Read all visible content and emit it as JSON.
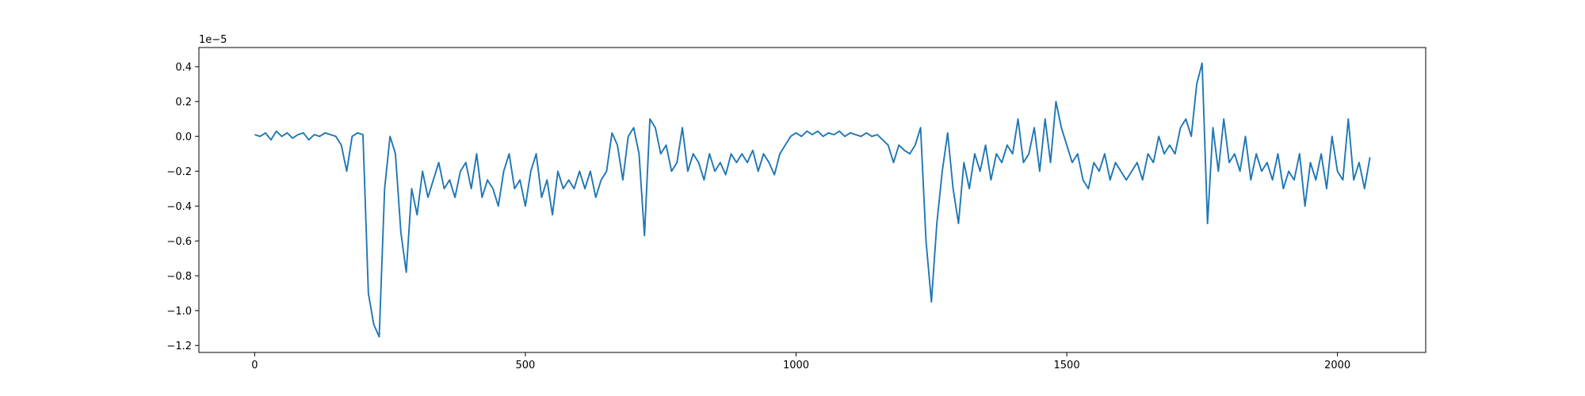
{
  "chart_data": {
    "type": "line",
    "y_offset_label": "1e−5",
    "x": [
      0,
      10,
      20,
      30,
      40,
      50,
      60,
      70,
      80,
      90,
      100,
      110,
      120,
      130,
      140,
      150,
      160,
      170,
      180,
      190,
      200,
      210,
      220,
      230,
      240,
      250,
      260,
      270,
      280,
      290,
      300,
      310,
      320,
      330,
      340,
      350,
      360,
      370,
      380,
      390,
      400,
      410,
      420,
      430,
      440,
      450,
      460,
      470,
      480,
      490,
      500,
      510,
      520,
      530,
      540,
      550,
      560,
      570,
      580,
      590,
      600,
      610,
      620,
      630,
      640,
      650,
      660,
      670,
      680,
      690,
      700,
      710,
      720,
      730,
      740,
      750,
      760,
      770,
      780,
      790,
      800,
      810,
      820,
      830,
      840,
      850,
      860,
      870,
      880,
      890,
      900,
      910,
      920,
      930,
      940,
      950,
      960,
      970,
      980,
      990,
      1000,
      1010,
      1020,
      1030,
      1040,
      1050,
      1060,
      1070,
      1080,
      1090,
      1100,
      1110,
      1120,
      1130,
      1140,
      1150,
      1160,
      1170,
      1180,
      1190,
      1200,
      1210,
      1220,
      1230,
      1240,
      1250,
      1260,
      1270,
      1280,
      1290,
      1300,
      1310,
      1320,
      1330,
      1340,
      1350,
      1360,
      1370,
      1380,
      1390,
      1400,
      1410,
      1420,
      1430,
      1440,
      1450,
      1460,
      1470,
      1480,
      1490,
      1500,
      1510,
      1520,
      1530,
      1540,
      1550,
      1560,
      1570,
      1580,
      1590,
      1600,
      1610,
      1620,
      1630,
      1640,
      1650,
      1660,
      1670,
      1680,
      1690,
      1700,
      1710,
      1720,
      1730,
      1740,
      1750,
      1760,
      1770,
      1780,
      1790,
      1800,
      1810,
      1820,
      1830,
      1840,
      1850,
      1860,
      1870,
      1880,
      1890,
      1900,
      1910,
      1920,
      1930,
      1940,
      1950,
      1960,
      1970,
      1980,
      1990,
      2000,
      2010,
      2020,
      2030,
      2040,
      2050,
      2060
    ],
    "series": [
      {
        "color": "#1f77b4",
        "values": [
          0.01,
          0.0,
          0.02,
          -0.02,
          0.03,
          0.0,
          0.02,
          -0.01,
          0.01,
          0.02,
          -0.02,
          0.01,
          0.0,
          0.02,
          0.01,
          0.0,
          -0.05,
          -0.2,
          0.0,
          0.02,
          0.01,
          -0.9,
          -1.08,
          -1.15,
          -0.3,
          0.0,
          -0.1,
          -0.55,
          -0.78,
          -0.3,
          -0.45,
          -0.2,
          -0.35,
          -0.25,
          -0.15,
          -0.3,
          -0.25,
          -0.35,
          -0.2,
          -0.15,
          -0.3,
          -0.1,
          -0.35,
          -0.25,
          -0.3,
          -0.4,
          -0.2,
          -0.1,
          -0.3,
          -0.25,
          -0.4,
          -0.2,
          -0.1,
          -0.35,
          -0.25,
          -0.45,
          -0.2,
          -0.3,
          -0.25,
          -0.3,
          -0.2,
          -0.3,
          -0.2,
          -0.35,
          -0.25,
          -0.2,
          0.02,
          -0.05,
          -0.25,
          0.0,
          0.05,
          -0.1,
          -0.57,
          0.1,
          0.05,
          -0.1,
          -0.05,
          -0.2,
          -0.15,
          0.05,
          -0.2,
          -0.1,
          -0.15,
          -0.25,
          -0.1,
          -0.2,
          -0.15,
          -0.22,
          -0.1,
          -0.15,
          -0.1,
          -0.15,
          -0.08,
          -0.2,
          -0.1,
          -0.15,
          -0.22,
          -0.1,
          -0.05,
          0.0,
          0.02,
          0.0,
          0.03,
          0.01,
          0.03,
          0.0,
          0.02,
          0.01,
          0.03,
          0.0,
          0.02,
          0.01,
          0.0,
          0.02,
          0.0,
          0.01,
          -0.02,
          -0.05,
          -0.15,
          -0.05,
          -0.08,
          -0.1,
          -0.05,
          0.05,
          -0.6,
          -0.95,
          -0.5,
          -0.2,
          0.02,
          -0.3,
          -0.5,
          -0.15,
          -0.3,
          -0.1,
          -0.2,
          -0.05,
          -0.25,
          -0.1,
          -0.15,
          -0.05,
          -0.1,
          0.1,
          -0.15,
          -0.1,
          0.05,
          -0.2,
          0.1,
          -0.15,
          0.2,
          0.05,
          -0.05,
          -0.15,
          -0.1,
          -0.25,
          -0.3,
          -0.15,
          -0.2,
          -0.1,
          -0.25,
          -0.15,
          -0.2,
          -0.25,
          -0.2,
          -0.15,
          -0.25,
          -0.1,
          -0.15,
          0.0,
          -0.1,
          -0.05,
          -0.1,
          0.05,
          0.1,
          0.0,
          0.3,
          0.42,
          -0.5,
          0.05,
          -0.2,
          0.1,
          -0.15,
          -0.1,
          -0.2,
          0.0,
          -0.25,
          -0.1,
          -0.2,
          -0.15,
          -0.25,
          -0.1,
          -0.3,
          -0.2,
          -0.25,
          -0.1,
          -0.4,
          -0.15,
          -0.25,
          -0.1,
          -0.3,
          0.0,
          -0.2,
          -0.25,
          0.1,
          -0.25,
          -0.15,
          -0.3,
          -0.12
        ]
      }
    ],
    "xlim": [
      -103,
      2163
    ],
    "ylim": [
      -1.24,
      0.51
    ],
    "xticks": [
      0,
      500,
      1000,
      1500,
      2000
    ],
    "yticks": [
      {
        "value": -1.2,
        "label": "−1.2"
      },
      {
        "value": -1.0,
        "label": "−1.0"
      },
      {
        "value": -0.8,
        "label": "−0.8"
      },
      {
        "value": -0.6,
        "label": "−0.6"
      },
      {
        "value": -0.4,
        "label": "−0.4"
      },
      {
        "value": -0.2,
        "label": "−0.2"
      },
      {
        "value": 0,
        "label": "0.0"
      },
      0.2,
      0.4
    ]
  }
}
